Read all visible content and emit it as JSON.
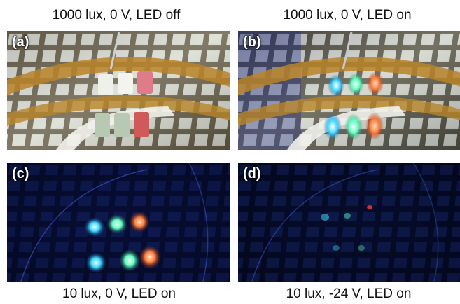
{
  "panels": [
    {
      "label": "(a)",
      "caption": "1000 lux, 0 V, LED off"
    },
    {
      "label": "(b)",
      "caption": "1000 lux, 0 V, LED on"
    },
    {
      "label": "(c)",
      "caption": "10 lux, 0 V, LED on"
    },
    {
      "label": "(d)",
      "caption": "10 lux, -24 V, LED on"
    }
  ],
  "colors": {
    "led_blue": "#3fd8ff",
    "led_cyan": "#5fffc0",
    "led_orange": "#ff7a3a",
    "dark_bg": "#050b2e",
    "bright_bg": "#cfd3c9",
    "polyimide": "#b88428"
  }
}
